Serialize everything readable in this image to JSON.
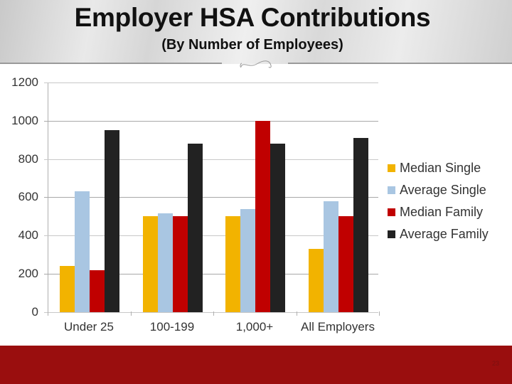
{
  "header": {
    "title": "Employer HSA Contributions",
    "subtitle": "(By Number of Employees)"
  },
  "footer": {
    "page_number": "23"
  },
  "colors": {
    "median_single": "#F2B300",
    "average_single": "#A9C6E2",
    "median_family": "#C00000",
    "average_family": "#222222",
    "footer": "#9A0E0E"
  },
  "chart_data": {
    "type": "bar",
    "title": "Employer HSA Contributions",
    "subtitle": "(By Number of Employees)",
    "xlabel": "",
    "ylabel": "",
    "categories": [
      "Under 25",
      "100-199",
      "1,000+",
      "All Employers"
    ],
    "series": [
      {
        "name": "Median Single",
        "color": "#F2B300",
        "values": [
          240,
          500,
          500,
          330
        ]
      },
      {
        "name": "Average Single",
        "color": "#A9C6E2",
        "values": [
          630,
          515,
          540,
          580
        ]
      },
      {
        "name": "Median Family",
        "color": "#C00000",
        "values": [
          220,
          500,
          1000,
          500
        ]
      },
      {
        "name": "Average Family",
        "color": "#222222",
        "values": [
          950,
          880,
          880,
          910
        ]
      }
    ],
    "yticks": [
      "0",
      "200",
      "400",
      "600",
      "800",
      "1000",
      "1200"
    ],
    "ylim": [
      0,
      1200
    ],
    "grid": true,
    "legend_position": "right"
  }
}
